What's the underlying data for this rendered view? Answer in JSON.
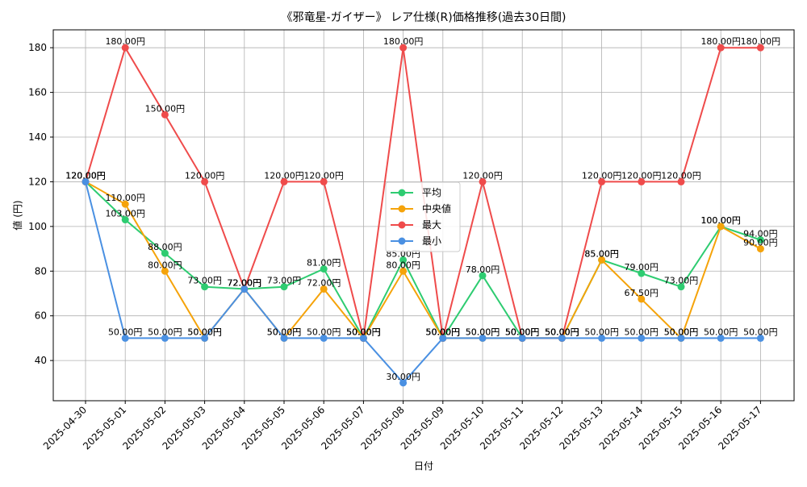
{
  "chart_data": {
    "type": "line",
    "title": "《邪竜星-ガイザー》 レア仕様(R)価格推移(過去30日間)",
    "xlabel": "日付",
    "ylabel": "値 (円)",
    "ylim": [
      22,
      188
    ],
    "yticks": [
      40,
      60,
      80,
      100,
      120,
      140,
      160,
      180
    ],
    "grid": true,
    "legend_position": "center",
    "label_suffix": "円",
    "categories": [
      "2025-04-30",
      "2025-05-01",
      "2025-05-02",
      "2025-05-03",
      "2025-05-04",
      "2025-05-05",
      "2025-05-06",
      "2025-05-07",
      "2025-05-08",
      "2025-05-09",
      "2025-05-10",
      "2025-05-11",
      "2025-05-12",
      "2025-05-13",
      "2025-05-14",
      "2025-05-15",
      "2025-05-16",
      "2025-05-17"
    ],
    "series": [
      {
        "name": "平均",
        "color": "#2ecc71",
        "values": [
          120,
          103,
          88,
          73,
          72,
          73,
          81,
          50,
          85,
          50,
          78,
          50,
          50,
          85,
          79,
          73,
          100,
          94
        ]
      },
      {
        "name": "中央値",
        "color": "#f5a30a",
        "values": [
          120,
          110,
          80,
          50,
          72,
          50,
          72,
          50,
          80,
          50,
          50,
          50,
          50,
          85,
          67.5,
          50,
          100,
          90
        ]
      },
      {
        "name": "最大",
        "color": "#ef4b4b",
        "values": [
          120,
          180,
          150,
          120,
          72,
          120,
          120,
          50,
          180,
          50,
          120,
          50,
          50,
          120,
          120,
          120,
          180,
          180
        ]
      },
      {
        "name": "最小",
        "color": "#4a90e2",
        "values": [
          120,
          50,
          50,
          50,
          72,
          50,
          50,
          50,
          30,
          50,
          50,
          50,
          50,
          50,
          50,
          50,
          50,
          50
        ]
      }
    ]
  }
}
